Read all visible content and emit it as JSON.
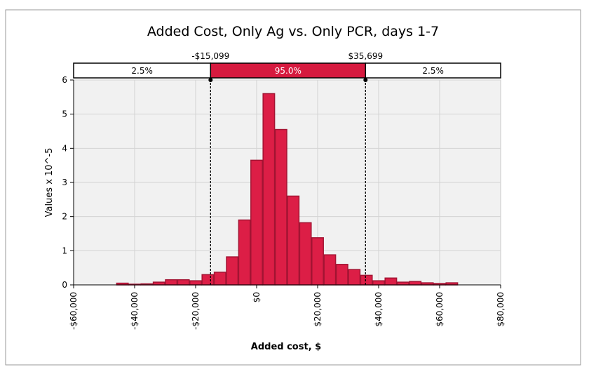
{
  "chart_data": {
    "type": "bar",
    "title": "Added Cost, Only Ag vs. Only PCR, days 1-7",
    "xlabel": "Added cost, $",
    "ylabel": "Values x 10^-5",
    "xlim": [
      -60000,
      80000
    ],
    "ylim": [
      0,
      6
    ],
    "x_ticks": [
      -60000,
      -40000,
      -20000,
      0,
      20000,
      40000,
      60000,
      80000
    ],
    "x_tick_labels": [
      "-$60,000",
      "-$40,000",
      "-$20,000",
      "$0",
      "$20,000",
      "$40,000",
      "$60,000",
      "$80,000"
    ],
    "y_ticks": [
      0,
      1,
      2,
      3,
      4,
      5,
      6
    ],
    "y_tick_labels": [
      "0",
      "1",
      "2",
      "3",
      "4",
      "5",
      "6"
    ],
    "grid": true,
    "bin_width": 4000,
    "bins": [
      {
        "x0": -46000,
        "x1": -42000,
        "value": 0.05
      },
      {
        "x0": -42000,
        "x1": -38000,
        "value": 0.02
      },
      {
        "x0": -38000,
        "x1": -34000,
        "value": 0.03
      },
      {
        "x0": -34000,
        "x1": -30000,
        "value": 0.08
      },
      {
        "x0": -30000,
        "x1": -26000,
        "value": 0.15
      },
      {
        "x0": -26000,
        "x1": -22000,
        "value": 0.15
      },
      {
        "x0": -22000,
        "x1": -18000,
        "value": 0.12
      },
      {
        "x0": -18000,
        "x1": -14000,
        "value": 0.3
      },
      {
        "x0": -14000,
        "x1": -10000,
        "value": 0.37
      },
      {
        "x0": -10000,
        "x1": -6000,
        "value": 0.82
      },
      {
        "x0": -6000,
        "x1": -2000,
        "value": 1.9
      },
      {
        "x0": -2000,
        "x1": 2000,
        "value": 3.65
      },
      {
        "x0": 2000,
        "x1": 6000,
        "value": 5.6
      },
      {
        "x0": 6000,
        "x1": 10000,
        "value": 4.55
      },
      {
        "x0": 10000,
        "x1": 14000,
        "value": 2.6
      },
      {
        "x0": 14000,
        "x1": 18000,
        "value": 1.82
      },
      {
        "x0": 18000,
        "x1": 22000,
        "value": 1.38
      },
      {
        "x0": 22000,
        "x1": 26000,
        "value": 0.88
      },
      {
        "x0": 26000,
        "x1": 30000,
        "value": 0.6
      },
      {
        "x0": 30000,
        "x1": 34000,
        "value": 0.45
      },
      {
        "x0": 34000,
        "x1": 38000,
        "value": 0.28
      },
      {
        "x0": 38000,
        "x1": 42000,
        "value": 0.12
      },
      {
        "x0": 42000,
        "x1": 46000,
        "value": 0.2
      },
      {
        "x0": 46000,
        "x1": 50000,
        "value": 0.08
      },
      {
        "x0": 50000,
        "x1": 54000,
        "value": 0.1
      },
      {
        "x0": 54000,
        "x1": 58000,
        "value": 0.06
      },
      {
        "x0": 58000,
        "x1": 62000,
        "value": 0.04
      },
      {
        "x0": 62000,
        "x1": 66000,
        "value": 0.06
      }
    ],
    "cutoffs": [
      {
        "value": -15099,
        "label": "-$15,099"
      },
      {
        "value": 35699,
        "label": "$35,699"
      }
    ],
    "bands": [
      {
        "label": "2.5%",
        "highlight": false
      },
      {
        "label": "95.0%",
        "highlight": true
      },
      {
        "label": "2.5%",
        "highlight": false
      }
    ],
    "colors": {
      "bar_fill": "#dc1e46",
      "bar_edge": "#a31433",
      "highlight_band": "#d61a3f",
      "plot_bg": "#f1f1f1",
      "grid": "#d3d3d3"
    }
  }
}
